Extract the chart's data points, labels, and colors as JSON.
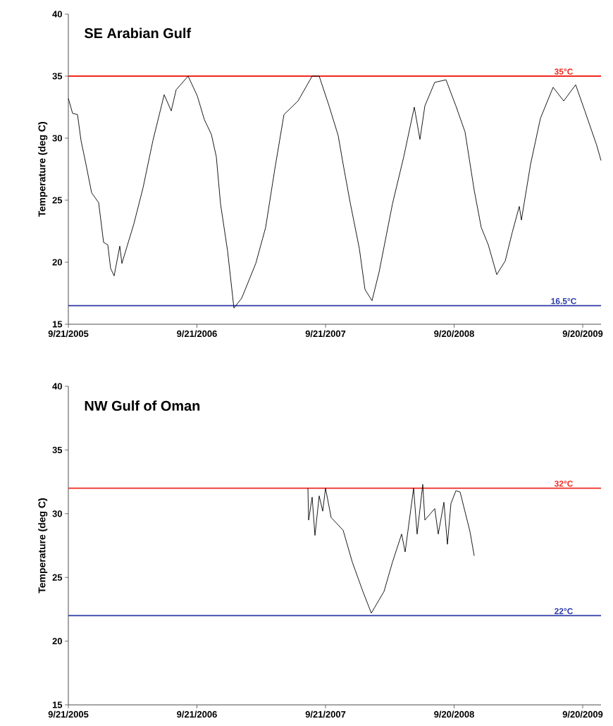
{
  "chart_data": [
    {
      "type": "line",
      "title": "SE Arabian Gulf",
      "ylabel": "Temperature (deg C)",
      "xlim": [
        "2005-09-21",
        "2009-11-11"
      ],
      "ylim": [
        15,
        40
      ],
      "xticks": [
        {
          "value": "2005-09-21",
          "label": "9/21/2005"
        },
        {
          "value": "2006-09-21",
          "label": "9/21/2006"
        },
        {
          "value": "2007-09-21",
          "label": "9/21/2007"
        },
        {
          "value": "2008-09-20",
          "label": "9/20/2008"
        },
        {
          "value": "2009-09-20",
          "label": "9/20/2009"
        }
      ],
      "yticks": [
        15,
        20,
        25,
        30,
        35,
        40
      ],
      "ref_lines": [
        {
          "axis": "y",
          "value": 35,
          "label": "35°C",
          "color": "#f0281e"
        },
        {
          "axis": "y",
          "value": 16.5,
          "label": "16.5°C",
          "color": "#2c3aa8"
        }
      ],
      "series": [
        {
          "color": "#000000",
          "x": [
            "2005-09-21",
            "2005-10-03",
            "2005-10-17",
            "2005-10-27",
            "2005-11-10",
            "2005-11-26",
            "2005-12-16",
            "2005-12-30",
            "2006-01-11",
            "2006-01-19",
            "2006-01-29",
            "2006-02-14",
            "2006-02-20",
            "2006-03-26",
            "2006-04-21",
            "2006-05-19",
            "2006-06-20",
            "2006-07-10",
            "2006-07-24",
            "2006-08-27",
            "2006-09-22",
            "2006-10-12",
            "2006-11-01",
            "2006-11-15",
            "2006-11-27",
            "2006-12-17",
            "2007-01-04",
            "2007-01-26",
            "2007-03-07",
            "2007-04-04",
            "2007-04-30",
            "2007-05-26",
            "2007-07-05",
            "2007-08-14",
            "2007-09-03",
            "2007-10-01",
            "2007-10-27",
            "2007-11-10",
            "2007-11-30",
            "2007-12-26",
            "2008-01-11",
            "2008-01-31",
            "2008-02-20",
            "2008-03-29",
            "2008-04-30",
            "2008-05-30",
            "2008-06-15",
            "2008-06-29",
            "2008-07-27",
            "2008-08-28",
            "2008-09-25",
            "2008-10-21",
            "2008-11-16",
            "2008-12-06",
            "2008-12-26",
            "2009-01-19",
            "2009-02-12",
            "2009-03-04",
            "2009-03-24",
            "2009-03-30",
            "2009-04-25",
            "2009-05-23",
            "2009-06-28",
            "2009-07-28",
            "2009-08-31",
            "2009-09-26",
            "2009-10-30",
            "2009-11-11"
          ],
          "values": [
            33.2,
            32.0,
            31.9,
            29.8,
            27.9,
            25.6,
            24.8,
            21.6,
            21.4,
            19.5,
            18.9,
            21.3,
            19.9,
            23.1,
            26.0,
            29.8,
            33.5,
            32.2,
            33.9,
            35.0,
            33.4,
            31.5,
            30.3,
            28.5,
            24.7,
            20.9,
            16.3,
            17.1,
            19.9,
            22.8,
            27.5,
            31.9,
            33.0,
            35.0,
            35.0,
            32.6,
            30.2,
            27.9,
            24.8,
            21.1,
            17.8,
            16.9,
            19.2,
            24.7,
            28.5,
            32.5,
            29.9,
            32.6,
            34.5,
            34.7,
            32.6,
            30.5,
            25.8,
            22.8,
            21.4,
            19.0,
            20.1,
            22.4,
            24.5,
            23.4,
            27.9,
            31.6,
            34.1,
            33.0,
            34.3,
            32.2,
            29.4,
            28.2
          ]
        }
      ]
    },
    {
      "type": "line",
      "title": "NW Gulf of Oman",
      "ylabel": "Temperature (deg C)",
      "xlim": [
        "2005-09-21",
        "2009-11-11"
      ],
      "ylim": [
        15,
        40
      ],
      "xticks": [
        {
          "value": "2005-09-21",
          "label": "9/21/2005"
        },
        {
          "value": "2006-09-21",
          "label": "9/21/2006"
        },
        {
          "value": "2007-09-21",
          "label": "9/21/2007"
        },
        {
          "value": "2008-09-20",
          "label": "9/20/2008"
        },
        {
          "value": "2009-09-20",
          "label": "9/20/2009"
        }
      ],
      "yticks": [
        15,
        20,
        25,
        30,
        35,
        40
      ],
      "ref_lines": [
        {
          "axis": "y",
          "value": 32,
          "label": "32°C",
          "color": "#f0281e"
        },
        {
          "axis": "y",
          "value": 22,
          "label": "22°C",
          "color": "#2c3aa8"
        }
      ],
      "series": [
        {
          "color": "#000000",
          "x": [
            "2007-08-02",
            "2007-08-04",
            "2007-08-14",
            "2007-08-22",
            "2007-09-03",
            "2007-09-13",
            "2007-09-21",
            "2007-10-07",
            "2007-11-10",
            "2007-12-06",
            "2008-01-05",
            "2008-01-29",
            "2008-03-05",
            "2008-03-29",
            "2008-04-24",
            "2008-05-04",
            "2008-05-28",
            "2008-06-07",
            "2008-06-23",
            "2008-06-29",
            "2008-07-27",
            "2008-08-06",
            "2008-08-22",
            "2008-09-01",
            "2008-09-11",
            "2008-09-25",
            "2008-10-07",
            "2008-11-04",
            "2008-11-16"
          ],
          "values": [
            32.0,
            29.5,
            31.3,
            28.3,
            31.4,
            30.2,
            32.0,
            29.7,
            28.7,
            26.2,
            23.9,
            22.2,
            23.9,
            26.2,
            28.4,
            27.0,
            32.0,
            28.4,
            32.3,
            29.5,
            30.4,
            28.4,
            30.9,
            27.6,
            30.8,
            31.8,
            31.7,
            28.6,
            26.7
          ]
        }
      ]
    }
  ]
}
